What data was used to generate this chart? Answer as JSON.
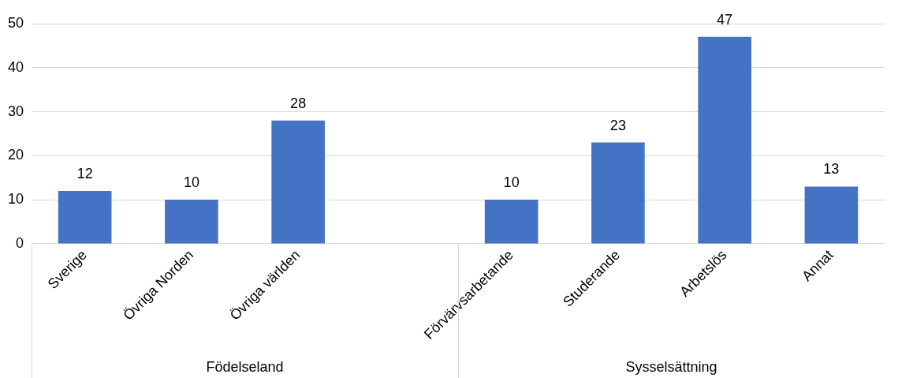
{
  "chart_data": {
    "type": "bar",
    "categories": [
      "Sverige",
      "Övriga Norden",
      "Övriga världen",
      null,
      "Förvärvsarbetande",
      "Studerande",
      "Arbetslös",
      "Annat"
    ],
    "values": [
      12,
      10,
      28,
      null,
      10,
      23,
      47,
      13
    ],
    "color": "#4472c4",
    "ylim": [
      0,
      50
    ],
    "yticks": [
      0,
      10,
      20,
      30,
      40,
      50
    ],
    "grid": "y",
    "legend": false,
    "data_labels": true,
    "annotations": [
      "Födelseland",
      "Sysselsättning"
    ]
  }
}
